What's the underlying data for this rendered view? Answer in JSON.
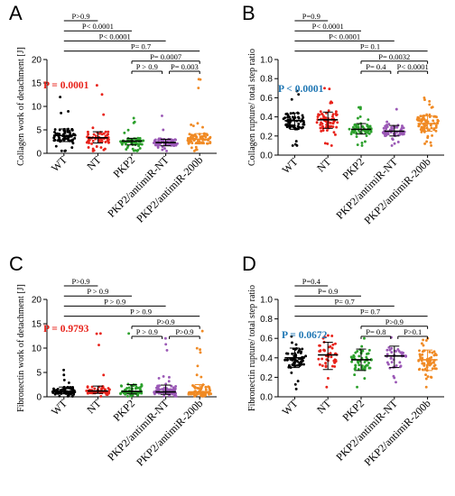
{
  "colors": {
    "black": "#000000",
    "red": "#e8231b",
    "green": "#2ca02c",
    "purple": "#9b59b6",
    "blue": "#2f64b5",
    "orange": "#f08a24",
    "p_red": "#e8231b",
    "p_blue": "#1f77b4"
  },
  "chart_data": [
    {
      "type": "scatter",
      "panel": "A",
      "ylabel": "Collagen work of detachment [J]",
      "ylim": [
        0,
        20
      ],
      "yticks": [
        0,
        5,
        10,
        15,
        20
      ],
      "categories": [
        "WT",
        "NT",
        "PKP2",
        "PKP2/antimiR-NT",
        "PKP2/antimiR-200b"
      ],
      "colors": [
        "#000000",
        "#e8231b",
        "#2ca02c",
        "#9b59b6",
        "#f08a24"
      ],
      "medians": [
        3.8,
        3.3,
        2.6,
        2.3,
        3.0
      ],
      "q1": [
        2.5,
        2.2,
        1.8,
        1.6,
        2.0
      ],
      "q3": [
        5.2,
        4.6,
        3.2,
        3.0,
        4.2
      ],
      "mins": [
        0.5,
        0.5,
        0.5,
        0.5,
        0.5
      ],
      "maxs": [
        12.0,
        14.5,
        7.5,
        8.0,
        15.8
      ],
      "n": [
        70,
        65,
        60,
        70,
        75
      ],
      "overall_p": "P = 0.0001",
      "overall_p_color": "#e8231b",
      "comparisons": [
        {
          "from": 0,
          "to": 1,
          "label": "P>0.9"
        },
        {
          "from": 0,
          "to": 2,
          "label": "P< 0.0001"
        },
        {
          "from": 0,
          "to": 3,
          "label": "P< 0.0001"
        },
        {
          "from": 0,
          "to": 4,
          "label": "P= 0.7"
        },
        {
          "from": 2,
          "to": 4,
          "label": "P= 0.0007"
        },
        {
          "from": 2,
          "to": 3,
          "label": "P > 0.9"
        },
        {
          "from": 3,
          "to": 4,
          "label": "P= 0.003"
        }
      ]
    },
    {
      "type": "scatter",
      "panel": "B",
      "ylabel": "Collagen rupture/ total step ratio",
      "ylim": [
        0,
        1.0
      ],
      "yticks": [
        0.0,
        0.2,
        0.4,
        0.6,
        0.8,
        1.0
      ],
      "categories": [
        "WT",
        "NT",
        "PKP2",
        "PKP2/antimiR-NT",
        "PKP2/antimiR-200b"
      ],
      "colors": [
        "#000000",
        "#e8231b",
        "#2ca02c",
        "#9b59b6",
        "#f08a24"
      ],
      "medians": [
        0.36,
        0.37,
        0.27,
        0.25,
        0.33
      ],
      "q1": [
        0.27,
        0.28,
        0.22,
        0.2,
        0.25
      ],
      "q3": [
        0.44,
        0.45,
        0.33,
        0.31,
        0.41
      ],
      "mins": [
        0.1,
        0.1,
        0.1,
        0.1,
        0.1
      ],
      "maxs": [
        0.67,
        0.7,
        0.5,
        0.48,
        0.6
      ],
      "n": [
        70,
        70,
        60,
        70,
        75
      ],
      "overall_p": "P < 0.0001",
      "overall_p_color": "#1f77b4",
      "comparisons": [
        {
          "from": 0,
          "to": 1,
          "label": "P=0.9"
        },
        {
          "from": 0,
          "to": 2,
          "label": "P< 0.0001"
        },
        {
          "from": 0,
          "to": 3,
          "label": "P< 0.0001"
        },
        {
          "from": 0,
          "to": 4,
          "label": "P= 0.1"
        },
        {
          "from": 2,
          "to": 4,
          "label": "P= 0.0032"
        },
        {
          "from": 2,
          "to": 3,
          "label": "P= 0.4"
        },
        {
          "from": 3,
          "to": 4,
          "label": "P< 0.0001"
        }
      ]
    },
    {
      "type": "scatter",
      "panel": "C",
      "ylabel": "Fibronectin work of detachment [J]",
      "ylim": [
        0,
        20
      ],
      "yticks": [
        0,
        5,
        10,
        15,
        20
      ],
      "categories": [
        "WT",
        "NT",
        "PKP2",
        "PKP2/antimiR-NT",
        "PKP2/antimiR-200b"
      ],
      "colors": [
        "#000000",
        "#e8231b",
        "#2ca02c",
        "#9b59b6",
        "#f08a24"
      ],
      "medians": [
        1.1,
        1.2,
        1.1,
        1.0,
        1.0
      ],
      "q1": [
        0.6,
        0.7,
        0.6,
        0.5,
        0.5
      ],
      "q3": [
        2.0,
        2.2,
        2.5,
        2.4,
        2.5
      ],
      "mins": [
        0.1,
        0.1,
        0.1,
        0.1,
        0.1
      ],
      "maxs": [
        5.5,
        13.0,
        13.0,
        12.0,
        13.5
      ],
      "n": [
        75,
        70,
        75,
        70,
        75
      ],
      "overall_p": "P = 0.9793",
      "overall_p_color": "#e8231b",
      "comparisons": [
        {
          "from": 0,
          "to": 1,
          "label": "P>0.9"
        },
        {
          "from": 0,
          "to": 2,
          "label": "P > 0.9"
        },
        {
          "from": 0,
          "to": 3,
          "label": "P > 0.9"
        },
        {
          "from": 0,
          "to": 4,
          "label": "P > 0.9"
        },
        {
          "from": 2,
          "to": 4,
          "label": "P>0.9"
        },
        {
          "from": 2,
          "to": 3,
          "label": "P > 0.9"
        },
        {
          "from": 3,
          "to": 4,
          "label": "P>0.9"
        }
      ]
    },
    {
      "type": "scatter",
      "panel": "D",
      "ylabel": "Fibronectin rupture/ total step ratio",
      "ylim": [
        0,
        1.0
      ],
      "yticks": [
        0.0,
        0.2,
        0.4,
        0.6,
        0.8,
        1.0
      ],
      "categories": [
        "WT",
        "NT",
        "PKP2",
        "PKP2/antimiR-NT",
        "PKP2/antimiR-200b"
      ],
      "colors": [
        "#000000",
        "#e8231b",
        "#2ca02c",
        "#9b59b6",
        "#f08a24"
      ],
      "medians": [
        0.4,
        0.43,
        0.38,
        0.42,
        0.38
      ],
      "q1": [
        0.3,
        0.28,
        0.27,
        0.3,
        0.27
      ],
      "q3": [
        0.5,
        0.56,
        0.49,
        0.52,
        0.48
      ],
      "mins": [
        0.08,
        0.1,
        0.1,
        0.15,
        0.1
      ],
      "maxs": [
        0.62,
        0.63,
        0.6,
        0.61,
        0.6
      ],
      "n": [
        60,
        45,
        55,
        40,
        60
      ],
      "overall_p": "P = 0.0672",
      "overall_p_color": "#1f77b4",
      "comparisons": [
        {
          "from": 0,
          "to": 1,
          "label": "P=0.4"
        },
        {
          "from": 0,
          "to": 2,
          "label": "P= 0.9"
        },
        {
          "from": 0,
          "to": 3,
          "label": "P= 0.7"
        },
        {
          "from": 0,
          "to": 4,
          "label": "P= 0.7"
        },
        {
          "from": 2,
          "to": 4,
          "label": "P>0.9"
        },
        {
          "from": 2,
          "to": 3,
          "label": "P= 0.8"
        },
        {
          "from": 3,
          "to": 4,
          "label": "P>0.1"
        }
      ]
    }
  ]
}
